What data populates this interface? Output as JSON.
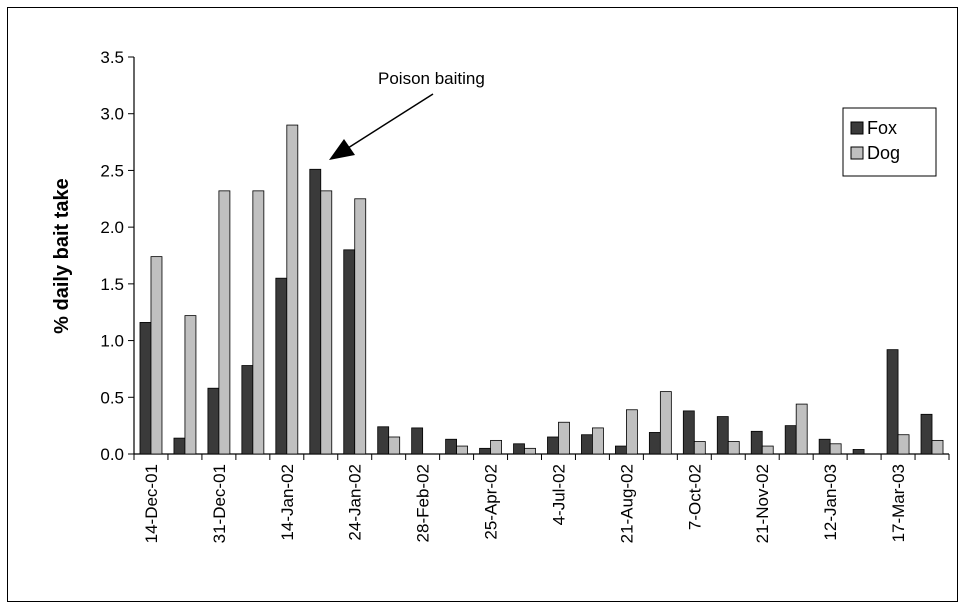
{
  "chart_data": {
    "type": "bar",
    "title": "",
    "xlabel": "",
    "ylabel": "% daily bait take",
    "ylim": [
      0,
      3.5
    ],
    "yticks": [
      "0.0",
      "0.5",
      "1.0",
      "1.5",
      "2.0",
      "2.5",
      "3.0",
      "3.5"
    ],
    "grid": false,
    "legend_placement": "top-right",
    "annotation": "Poison baiting",
    "category_labels": [
      "14-Dec-01",
      "31-Dec-01",
      "14-Jan-02",
      "24-Jan-02",
      "28-Feb-02",
      "25-Apr-02",
      "4-Jul-02",
      "21-Aug-02",
      "7-Oct-02",
      "21-Nov-02",
      "12-Jan-03",
      "17-Mar-03"
    ],
    "series": [
      {
        "name": "Fox",
        "color": "#3a3a3a",
        "values": [
          1.16,
          0.14,
          0.58,
          0.78,
          1.55,
          2.51,
          1.8,
          0.24,
          0.23,
          0.13,
          0.05,
          0.09,
          0.15,
          0.17,
          0.07,
          0.19,
          0.38,
          0.33,
          0.2,
          0.25,
          0.13,
          0.04,
          0.92,
          0.35
        ]
      },
      {
        "name": "Dog",
        "color": "#c0c0c0",
        "values": [
          1.74,
          1.22,
          2.32,
          2.32,
          2.9,
          2.32,
          2.25,
          0.15,
          0.0,
          0.07,
          0.12,
          0.05,
          0.28,
          0.23,
          0.39,
          0.55,
          0.11,
          0.11,
          0.07,
          0.44,
          0.09,
          0.0,
          0.17,
          0.12
        ]
      }
    ]
  }
}
